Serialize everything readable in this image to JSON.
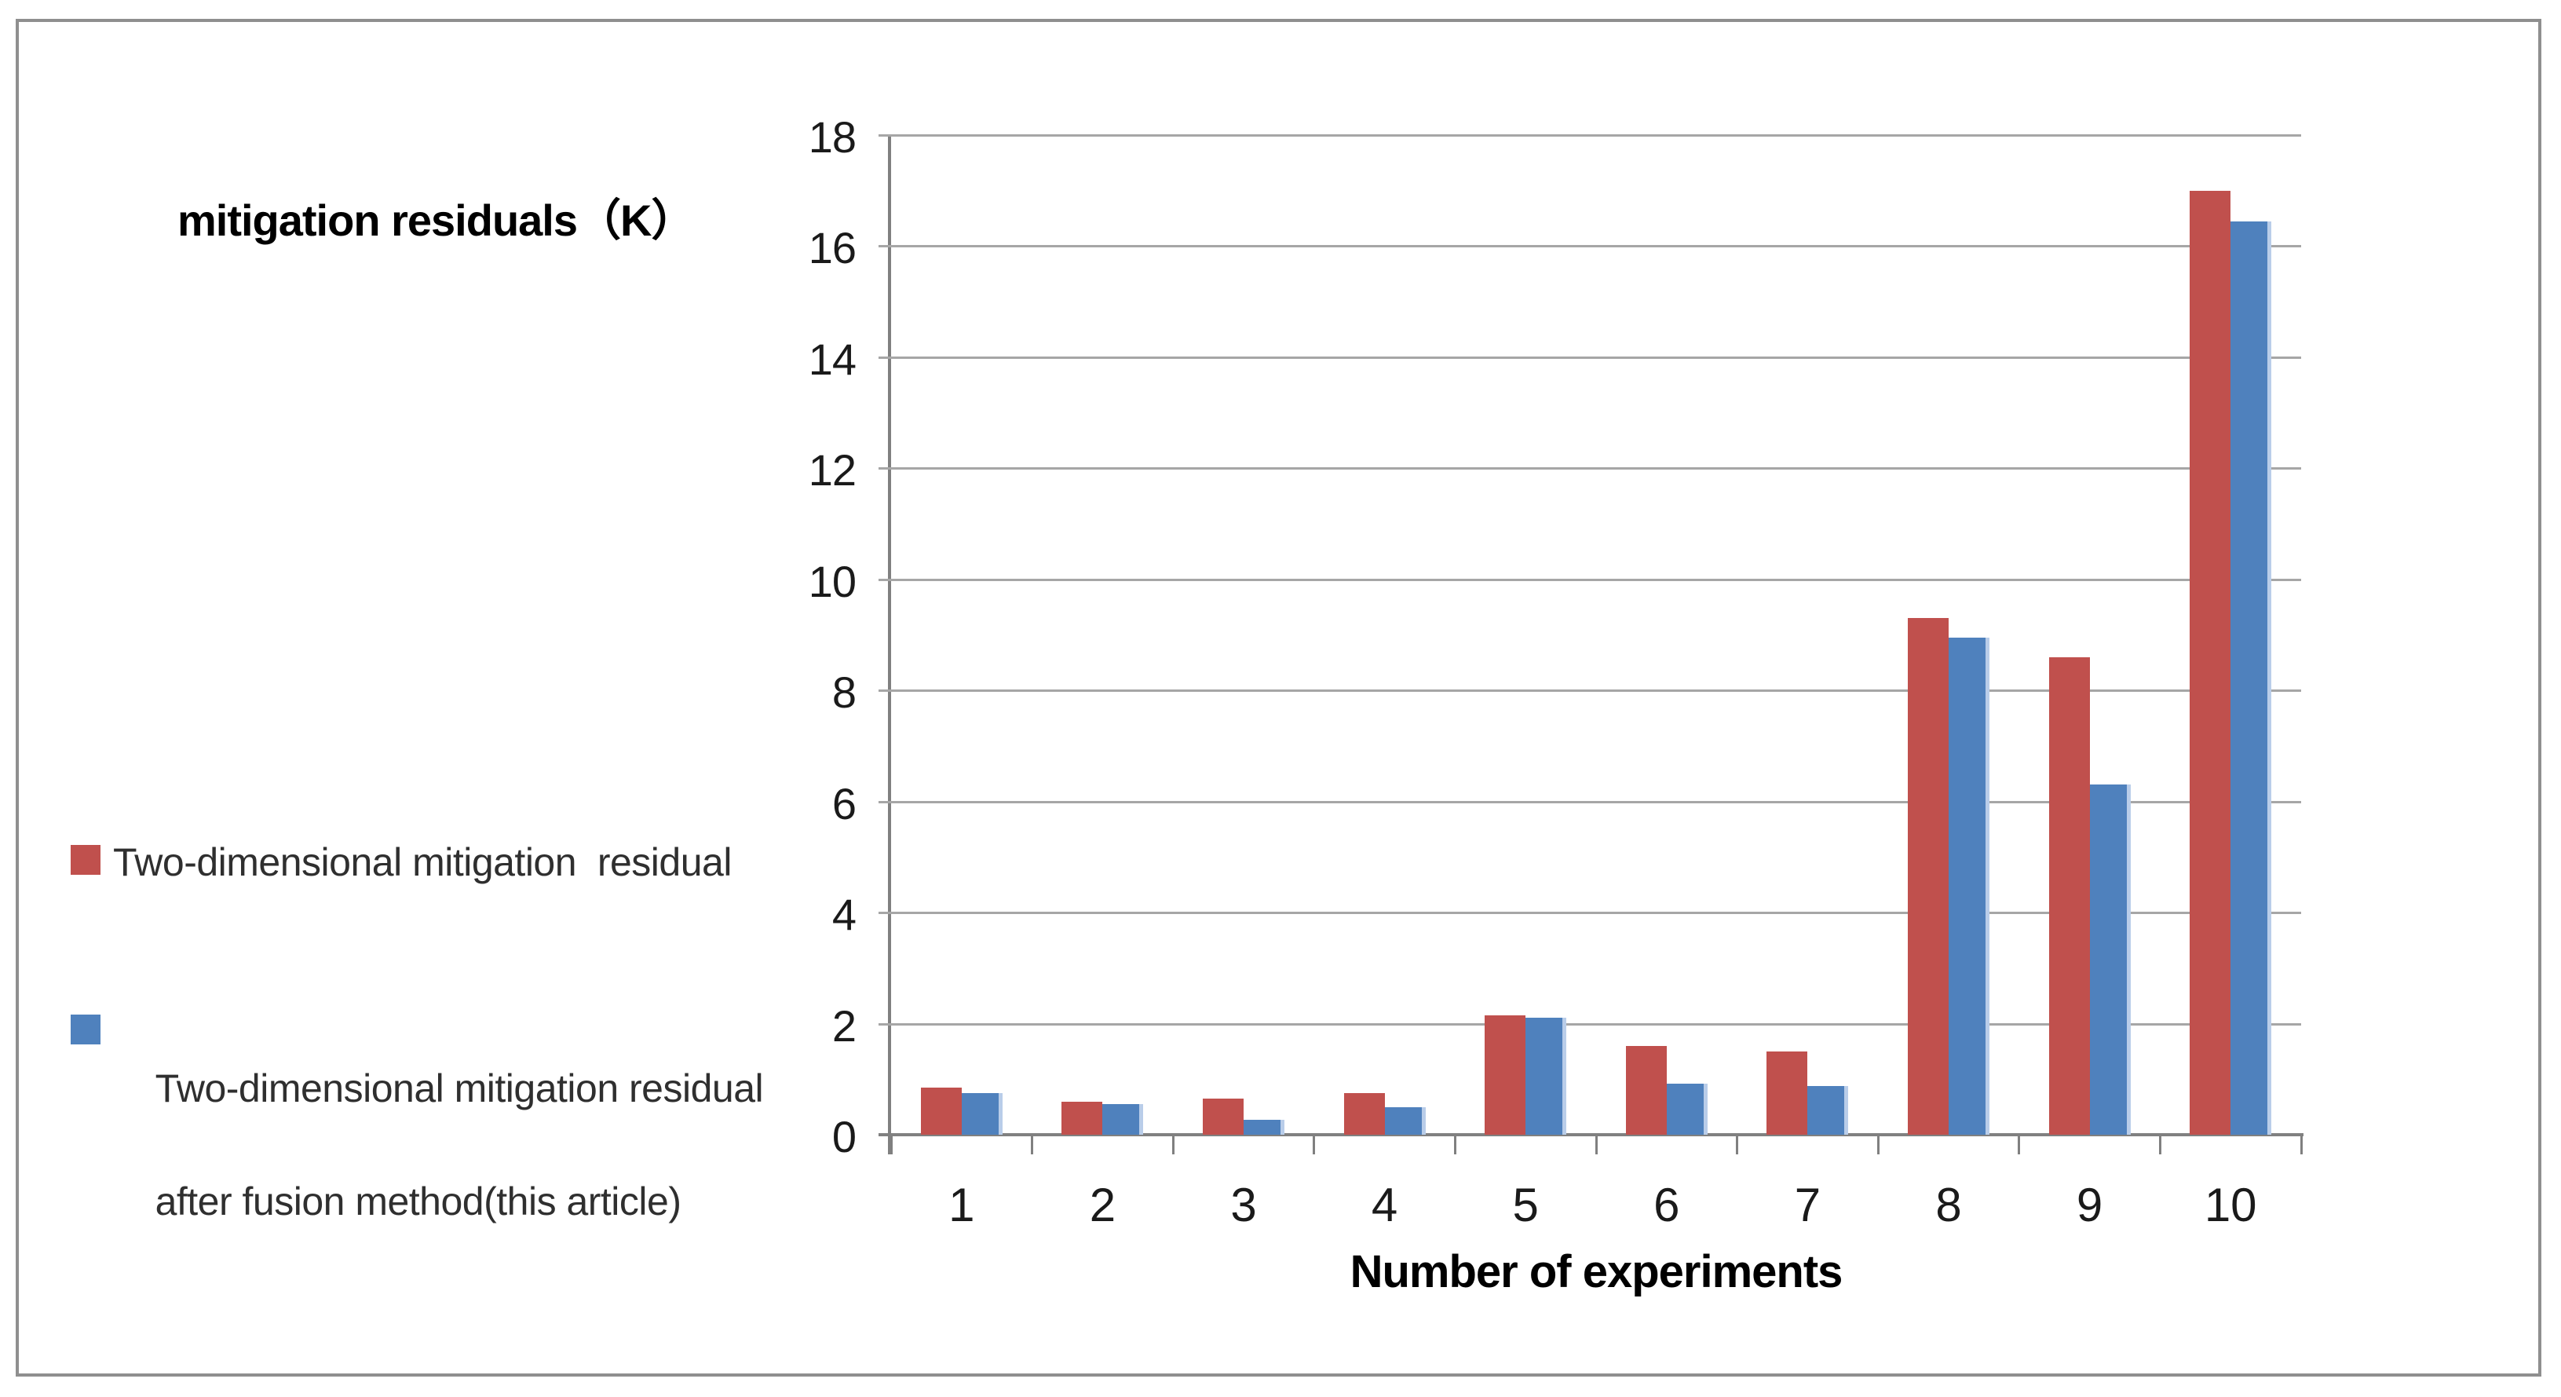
{
  "chart_title": "mitigation residuals（K）",
  "x_axis_title": "Number of experiments",
  "legend": {
    "item1": {
      "label": "Two-dimensional mitigation  residual",
      "color": "#c0504d"
    },
    "item2": {
      "line1": "Two-dimensional mitigation residual",
      "line2": "after fusion method(this article)",
      "color": "#4f81bd"
    }
  },
  "colors": {
    "red_series": "#c0504d",
    "blue_series": "#4f81bd",
    "blue_highlight_edge": "#b9cde9",
    "gridline": "#a6a6a6",
    "axis": "#808080",
    "frame_border": "#8f8f8f",
    "background": "#ffffff"
  },
  "chart_data": {
    "type": "bar",
    "title": "mitigation residuals（K）",
    "xlabel": "Number of experiments",
    "ylabel": "",
    "categories": [
      "1",
      "2",
      "3",
      "4",
      "5",
      "6",
      "7",
      "8",
      "9",
      "10"
    ],
    "series": [
      {
        "name": "Two-dimensional mitigation  residual",
        "color": "#c0504d",
        "values": [
          0.85,
          0.6,
          0.65,
          0.75,
          2.15,
          1.6,
          1.5,
          9.3,
          8.6,
          17.0
        ]
      },
      {
        "name": "Two-dimensional mitigation residual after fusion method(this article)",
        "color": "#4f81bd",
        "values": [
          0.75,
          0.55,
          0.27,
          0.5,
          2.1,
          0.92,
          0.88,
          8.95,
          6.3,
          16.45
        ]
      }
    ],
    "ylim": [
      0,
      18
    ],
    "ytick_step": 2,
    "grid": true,
    "legend_position": "left"
  }
}
